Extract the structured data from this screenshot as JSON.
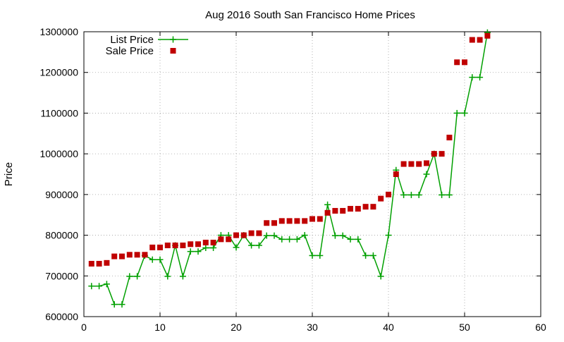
{
  "chart_data": {
    "type": "line",
    "title": "Aug 2016 South San Francisco Home Prices",
    "xlabel": "",
    "ylabel": "Price",
    "xlim": [
      0,
      60
    ],
    "ylim": [
      600000,
      1300000
    ],
    "xticks": [
      0,
      10,
      20,
      30,
      40,
      50,
      60
    ],
    "yticks": [
      600000,
      700000,
      800000,
      900000,
      1000000,
      1100000,
      1200000,
      1300000
    ],
    "grid": true,
    "legend_position": "top-left",
    "series": [
      {
        "name": "List Price",
        "color": "#00a000",
        "marker": "plus",
        "line": true,
        "x": [
          1,
          2,
          3,
          4,
          5,
          6,
          7,
          8,
          9,
          10,
          11,
          12,
          13,
          14,
          15,
          16,
          17,
          18,
          19,
          20,
          21,
          22,
          23,
          24,
          25,
          26,
          27,
          28,
          29,
          30,
          31,
          32,
          33,
          34,
          35,
          36,
          37,
          38,
          39,
          40,
          41,
          42,
          43,
          44,
          45,
          46,
          47,
          48,
          49,
          50,
          51,
          52,
          53
        ],
        "y": [
          675000,
          675000,
          680000,
          630000,
          630000,
          699000,
          699000,
          750000,
          740000,
          740000,
          699000,
          775000,
          699000,
          760000,
          760000,
          769000,
          769000,
          800000,
          800000,
          770000,
          800000,
          775000,
          775000,
          799000,
          799000,
          790000,
          790000,
          790000,
          800000,
          750000,
          750000,
          875000,
          799000,
          799000,
          790000,
          790000,
          750000,
          750000,
          699000,
          800000,
          960000,
          899000,
          899000,
          899000,
          950000,
          1000000,
          899000,
          899000,
          1100000,
          1100000,
          1188000,
          1188000,
          1298000
        ]
      },
      {
        "name": "Sale Price",
        "color": "#c00000",
        "marker": "square",
        "line": false,
        "x": [
          1,
          2,
          3,
          4,
          5,
          6,
          7,
          8,
          9,
          10,
          11,
          12,
          13,
          14,
          15,
          16,
          17,
          18,
          19,
          20,
          21,
          22,
          23,
          24,
          25,
          26,
          27,
          28,
          29,
          30,
          31,
          32,
          33,
          34,
          35,
          36,
          37,
          38,
          39,
          40,
          41,
          42,
          43,
          44,
          45,
          46,
          47,
          48,
          49,
          50,
          51,
          52,
          53
        ],
        "y": [
          730000,
          730000,
          732000,
          748000,
          748000,
          752000,
          752000,
          752000,
          770000,
          770000,
          775000,
          775000,
          775000,
          778000,
          778000,
          782000,
          782000,
          790000,
          790000,
          800000,
          800000,
          805000,
          805000,
          830000,
          830000,
          835000,
          835000,
          835000,
          835000,
          840000,
          840000,
          855000,
          860000,
          860000,
          865000,
          865000,
          870000,
          870000,
          890000,
          900000,
          950000,
          975000,
          975000,
          975000,
          977000,
          1000000,
          1000000,
          1040000,
          1225000,
          1225000,
          1280000,
          1280000,
          1290000
        ]
      }
    ]
  }
}
